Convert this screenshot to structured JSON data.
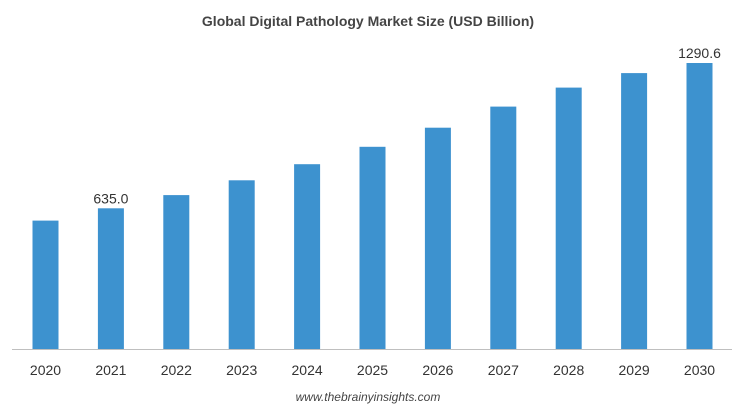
{
  "chart_data": {
    "type": "bar",
    "title": "Global Digital Pathology Market Size (USD Billion)",
    "xlabel": "",
    "ylabel": "",
    "categories": [
      "2020",
      "2021",
      "2022",
      "2023",
      "2024",
      "2025",
      "2026",
      "2027",
      "2028",
      "2029",
      "2030"
    ],
    "values": [
      579.6,
      635.0,
      694.6,
      761.4,
      833.9,
      912.3,
      998.8,
      1093.9,
      1179.6,
      1245.2,
      1290.6
    ],
    "data_labels": {
      "1": "635.0",
      "10": "1290.6"
    },
    "ylim": [
      0,
      1290.6
    ],
    "grid": false,
    "legend": "none",
    "bar_color": "#3d92cf"
  },
  "footer": {
    "source": "www.thebrainyinsights.com"
  }
}
